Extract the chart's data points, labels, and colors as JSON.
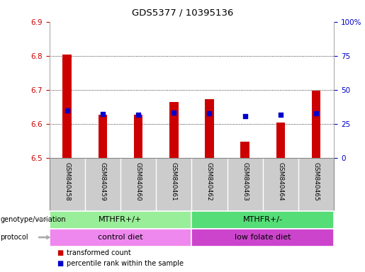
{
  "title": "GDS5377 / 10395136",
  "samples": [
    "GSM840458",
    "GSM840459",
    "GSM840460",
    "GSM840461",
    "GSM840462",
    "GSM840463",
    "GSM840464",
    "GSM840465"
  ],
  "transformed_count": [
    6.803,
    6.627,
    6.627,
    6.665,
    6.672,
    6.548,
    6.604,
    6.698
  ],
  "percentile_rank": [
    6.64,
    6.628,
    6.627,
    6.633,
    6.63,
    6.622,
    6.626,
    6.63
  ],
  "ylim_left": [
    6.5,
    6.9
  ],
  "ylim_right": [
    0,
    100
  ],
  "yticks_left": [
    6.5,
    6.6,
    6.7,
    6.8,
    6.9
  ],
  "yticks_right": [
    0,
    25,
    50,
    75,
    100
  ],
  "ytick_labels_right": [
    "0",
    "25",
    "50",
    "75",
    "100%"
  ],
  "bar_color": "#cc0000",
  "dot_color": "#0000cc",
  "baseline": 6.5,
  "bar_width": 0.25,
  "genotype_groups": [
    {
      "label": "MTHFR+/+",
      "start": 0,
      "end": 4,
      "color": "#99ee99"
    },
    {
      "label": "MTHFR+/-",
      "start": 4,
      "end": 8,
      "color": "#55dd77"
    }
  ],
  "protocol_groups": [
    {
      "label": "control diet",
      "start": 0,
      "end": 4,
      "color": "#ee88ee"
    },
    {
      "label": "low folate diet",
      "start": 4,
      "end": 8,
      "color": "#cc44cc"
    }
  ],
  "legend_red_label": "transformed count",
  "legend_blue_label": "percentile rank within the sample",
  "left_label_genotype": "genotype/variation",
  "left_label_protocol": "protocol",
  "background_color": "#ffffff",
  "label_area_color": "#cccccc",
  "label_area_border": "#888888",
  "grid_dotted_color": "#000000"
}
